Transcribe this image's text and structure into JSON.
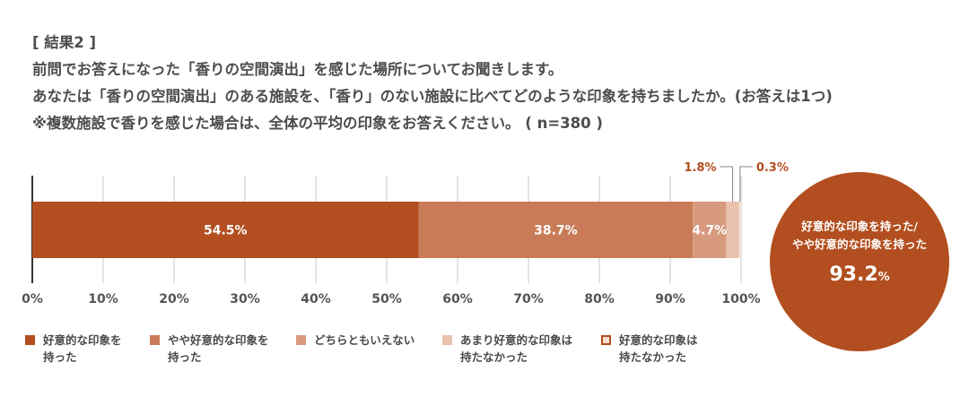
{
  "header": {
    "label": "[ 結果2 ]",
    "line1": "前問でお答えになった「香りの空間演出」を感じた場所についてお聞きします。",
    "line2": "あなたは「香りの空間演出」のある施設を、「香り」のない施設に比べてどのような印象を持ちましたか。(お答えは1つ)",
    "line3": "※複数施設で香りを感じた場合は、全体の平均の印象をお答えください。 ( n=380 )"
  },
  "chart_data": {
    "type": "bar",
    "orientation": "horizontal-stacked",
    "xlim": [
      0,
      100
    ],
    "x_ticks": [
      "0%",
      "10%",
      "20%",
      "30%",
      "40%",
      "50%",
      "60%",
      "70%",
      "80%",
      "90%",
      "100%"
    ],
    "grid": true,
    "series": [
      {
        "name": "好意的な印象を持った",
        "value": 54.5,
        "label": "54.5%",
        "color": "#b24e1f"
      },
      {
        "name": "やや好意的な印象を持った",
        "value": 38.7,
        "label": "38.7%",
        "color": "#c97b58"
      },
      {
        "name": "どちらともいえない",
        "value": 4.7,
        "label": "4.7%",
        "color": "#d89a7e"
      },
      {
        "name": "あまり好意的な印象は持たなかった",
        "value": 1.8,
        "label": "1.8%",
        "color": "#e9c1ac"
      },
      {
        "name": "好意的な印象は持たなかった",
        "value": 0.3,
        "label": "0.3%",
        "color": "#f6e1d4"
      }
    ]
  },
  "callout": {
    "line1": "好意的な印象を持った/",
    "line2": "やや好意的な印象を持った",
    "value": "93.2",
    "unit": "%"
  },
  "legend": [
    {
      "line1": "好意的な印象を",
      "line2": "持った",
      "color": "#b24e1f",
      "border": ""
    },
    {
      "line1": "やや好意的な印象を",
      "line2": "持った",
      "color": "#c97b58",
      "border": ""
    },
    {
      "line1": "どちらともいえない",
      "line2": "",
      "color": "#d89a7e",
      "border": ""
    },
    {
      "line1": "あまり好意的な印象は",
      "line2": "持たなかった",
      "color": "#e9c1ac",
      "border": ""
    },
    {
      "line1": "好意的な印象は",
      "line2": "持たなかった",
      "color": "#f6e1d4",
      "border": "#b24e1f"
    }
  ]
}
